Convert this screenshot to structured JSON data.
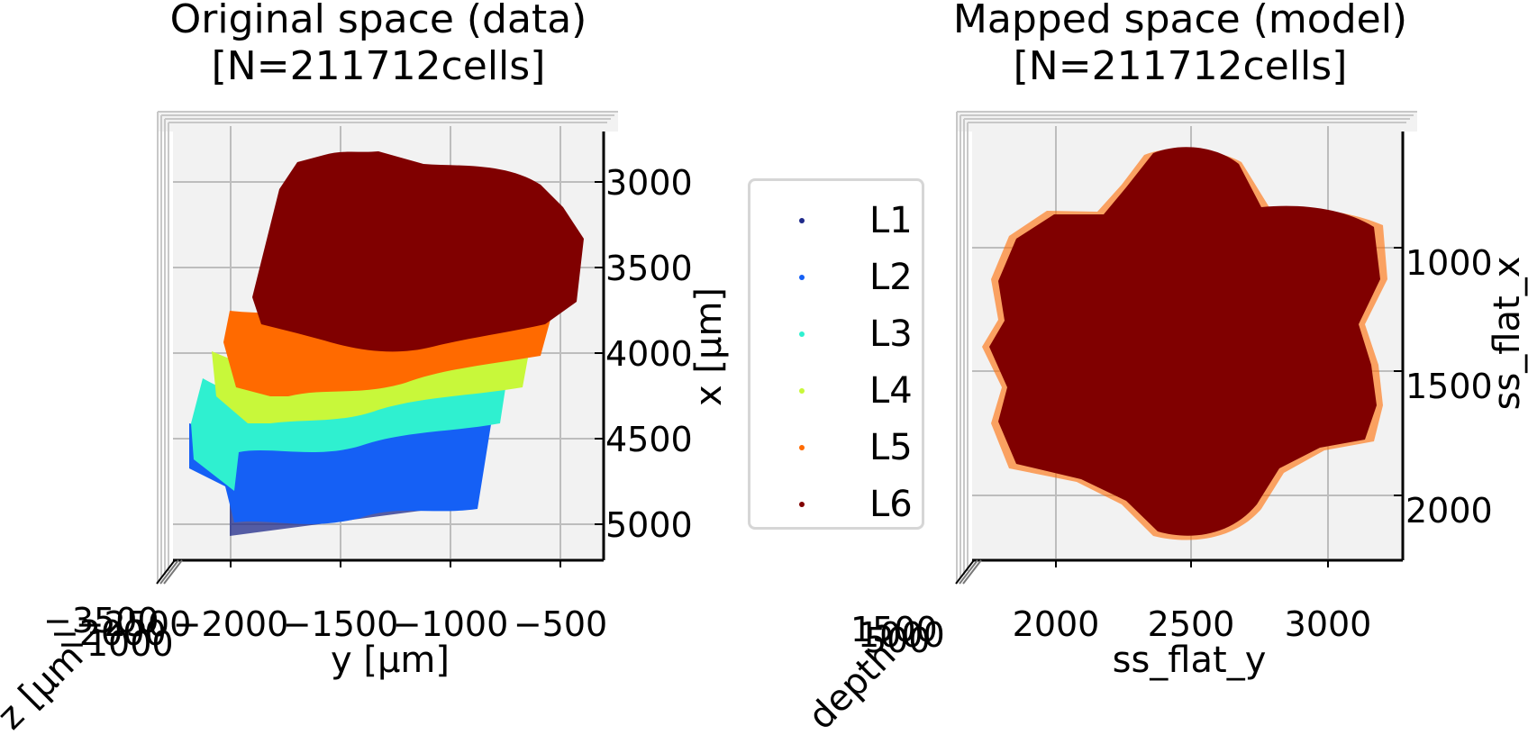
{
  "chart_data": [
    {
      "type": "scatter",
      "projection": "3d",
      "title": "Original space (data)\n[N=211712cells]",
      "xlabel": "y [$\\mu$m]",
      "ylabel": "x [$\\mu$m]",
      "zlabel": "z [$\\mu$m]",
      "xlabel_display": "y [μm]",
      "ylabel_display": "x [μm]",
      "zlabel_display": "z [μm",
      "xticks": [
        "−2500",
        "−2000",
        "−1500",
        "−1000",
        "−500"
      ],
      "yticks": [
        "3000",
        "3500",
        "4000",
        "4500",
        "5000"
      ],
      "zticks_overlap": [
        "−3500",
        "−2000",
        "−1000"
      ],
      "xlim": [
        -2700,
        -300
      ],
      "ylim": [
        2800,
        5200
      ],
      "regions": [
        {
          "series": "L6",
          "x_range": [
            -2200,
            -600
          ],
          "y_range": [
            2850,
            3900
          ]
        },
        {
          "series": "L5",
          "x_range": [
            -2300,
            -700
          ],
          "y_range": [
            3650,
            4450
          ]
        },
        {
          "series": "L4",
          "x_range": [
            -2350,
            -750
          ],
          "y_range": [
            4250,
            4700
          ]
        },
        {
          "series": "L3",
          "x_range": [
            -2450,
            -900
          ],
          "y_range": [
            4350,
            4900
          ]
        },
        {
          "series": "L2",
          "x_range": [
            -2500,
            -1000
          ],
          "y_range": [
            4450,
            5050
          ]
        },
        {
          "series": "L1",
          "x_range": [
            -2400,
            -1100
          ],
          "y_range": [
            4900,
            5100
          ]
        }
      ]
    },
    {
      "type": "scatter",
      "projection": "3d",
      "title": "Mapped space (model)\n[N=211712cells]",
      "xlabel": "ss_flat_y",
      "ylabel": "ss_flat_x",
      "zlabel": "depth",
      "ylabel_display": "ss_flat_x",
      "zlabel_display": "depth",
      "xticks": [
        "2000",
        "2500",
        "3000"
      ],
      "yticks": [
        "1000",
        "1500",
        "2000"
      ],
      "zticks_overlap": [
        "1500",
        "1000",
        "500"
      ],
      "xlim": [
        1700,
        3300
      ],
      "ylim": [
        700,
        2200
      ],
      "shape": "six-lobed flower, dominated by L6"
    }
  ],
  "legend": {
    "placement": "center",
    "items": [
      {
        "label": "L1",
        "color": "#1f2a8a"
      },
      {
        "label": "L2",
        "color": "#1560f5"
      },
      {
        "label": "L3",
        "color": "#2ff0d0"
      },
      {
        "label": "L4",
        "color": "#c8f83a"
      },
      {
        "label": "L5",
        "color": "#ff6a00"
      },
      {
        "label": "L6",
        "color": "#800000"
      }
    ]
  }
}
